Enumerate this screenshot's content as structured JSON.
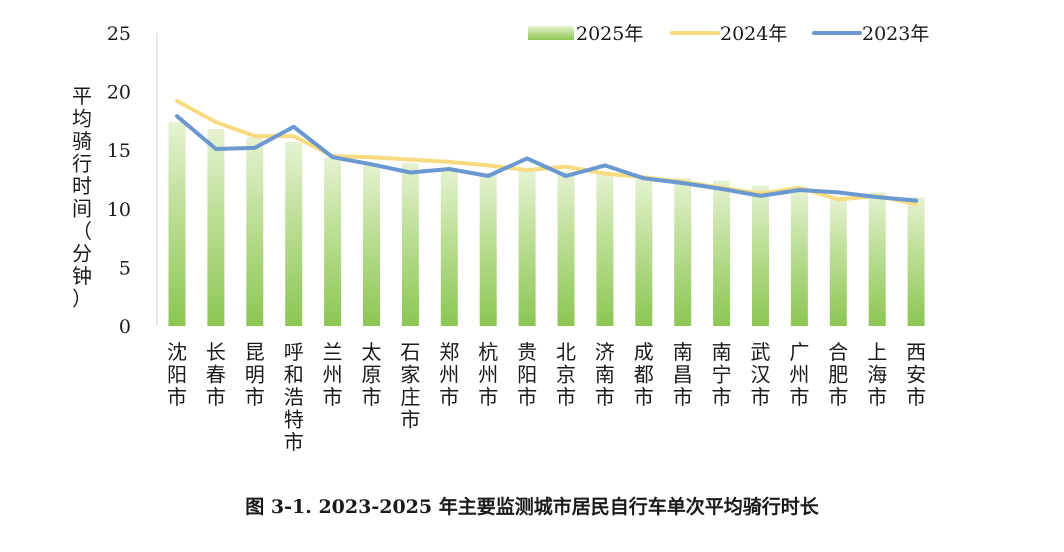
{
  "caption": "图 3-1. 2023-2025 年主要监测城市居民自行车单次平均骑行时长",
  "chart_data": {
    "type": "bar",
    "ylabel": "平均骑行时间（分钟）",
    "ylim": [
      0,
      25
    ],
    "yticks": [
      0,
      5,
      10,
      15,
      20,
      25
    ],
    "grid": false,
    "legend_position": "top-right",
    "categories": [
      "沈阳市",
      "长春市",
      "昆明市",
      "呼和浩特市",
      "兰州市",
      "太原市",
      "石家庄市",
      "郑州市",
      "杭州市",
      "贵阳市",
      "北京市",
      "济南市",
      "成都市",
      "南昌市",
      "南宁市",
      "武汉市",
      "广州市",
      "合肥市",
      "上海市",
      "西安市"
    ],
    "series": [
      {
        "name": "2025年",
        "type": "bar",
        "color_top": "#e6f2d2",
        "color_bottom": "#8cc653",
        "values": [
          17.4,
          16.8,
          16.1,
          15.7,
          14.4,
          13.9,
          13.9,
          13.4,
          13.1,
          13.2,
          13.2,
          13.1,
          12.6,
          12.6,
          12.4,
          12.0,
          11.7,
          10.9,
          11.4,
          11.0
        ]
      },
      {
        "name": "2024年",
        "type": "line",
        "color": "#f9db7f",
        "values": [
          19.2,
          17.4,
          16.2,
          16.2,
          14.5,
          14.4,
          14.2,
          14.0,
          13.7,
          13.3,
          13.6,
          13.0,
          12.7,
          12.3,
          11.8,
          11.3,
          11.8,
          10.8,
          11.1,
          10.4
        ]
      },
      {
        "name": "2023年",
        "type": "line",
        "color": "#6a98d0",
        "values": [
          17.9,
          15.1,
          15.2,
          17.0,
          14.4,
          13.8,
          13.1,
          13.4,
          12.8,
          14.3,
          12.8,
          13.7,
          12.6,
          12.2,
          11.7,
          11.1,
          11.6,
          11.4,
          11.0,
          10.7
        ]
      }
    ]
  }
}
